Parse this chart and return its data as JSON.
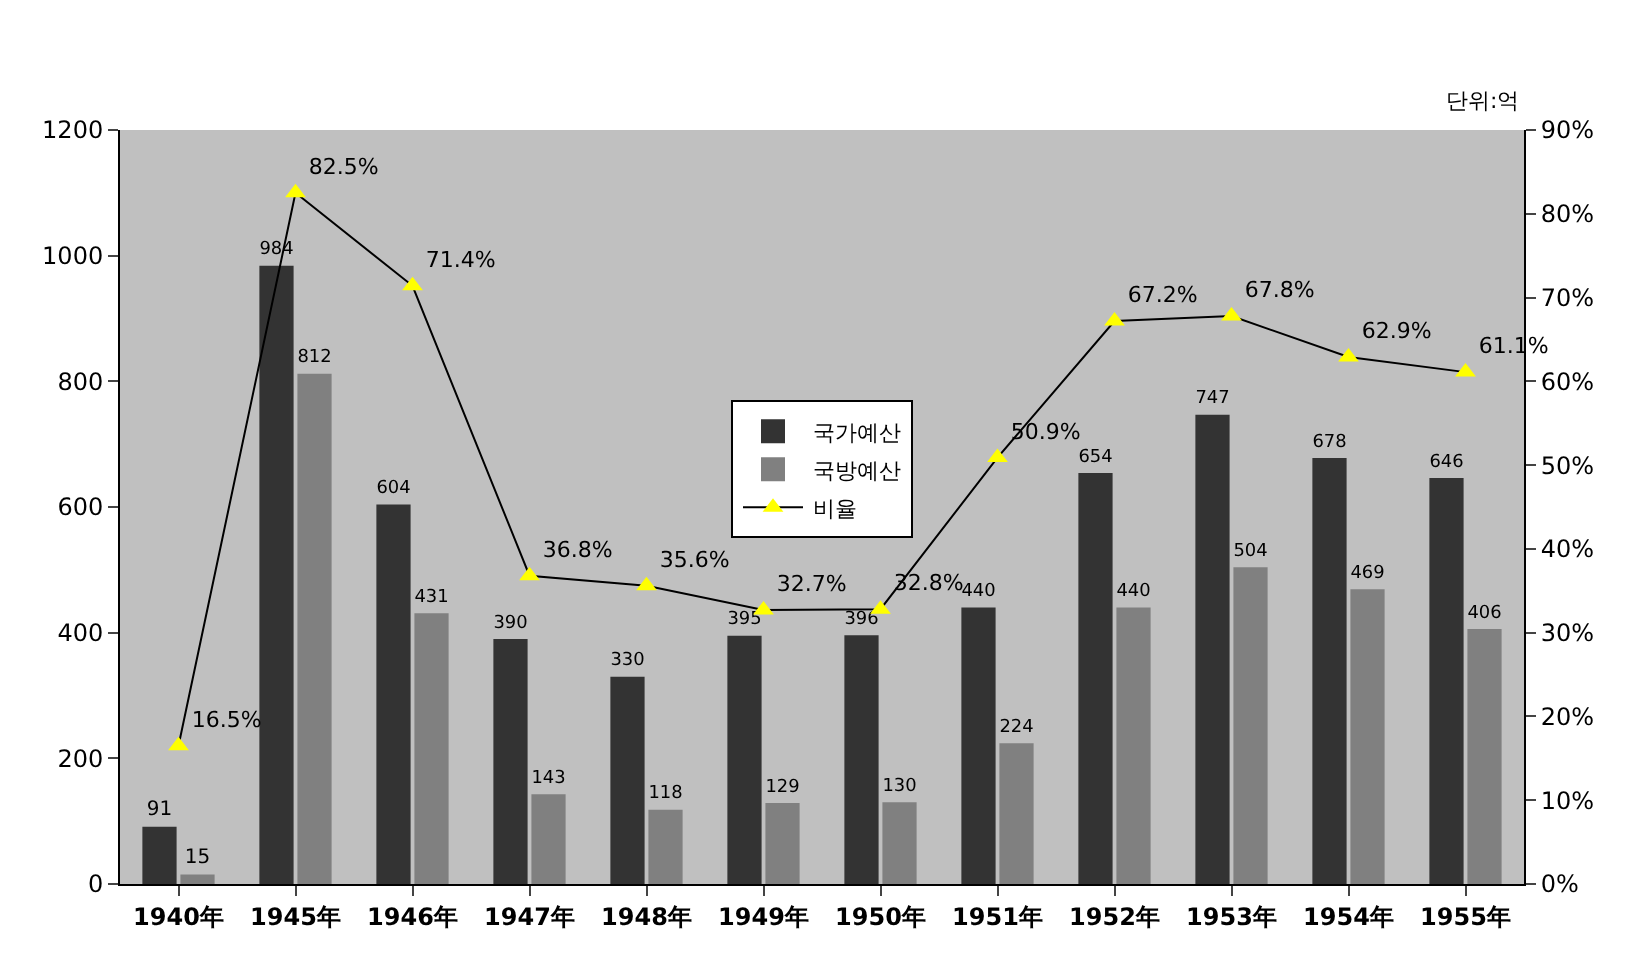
{
  "chart_data": {
    "type": "bar",
    "categories": [
      "1940年",
      "1945年",
      "1946年",
      "1947年",
      "1948年",
      "1949年",
      "1950年",
      "1951年",
      "1952年",
      "1953年",
      "1954年",
      "1955年"
    ],
    "series": [
      {
        "name": "국가예산",
        "color": "#333333",
        "values": [
          91,
          984,
          604,
          390,
          330,
          395,
          396,
          440,
          654,
          747,
          678,
          646
        ]
      },
      {
        "name": "국방예산",
        "color": "#808080",
        "values": [
          15,
          812,
          431,
          143,
          118,
          129,
          130,
          224,
          440,
          504,
          469,
          406
        ]
      },
      {
        "name": "비율",
        "type": "line",
        "axis": "y2",
        "color": "#000000",
        "colors": [
          "#ffff00",
          "#ffff00",
          "#ffff00",
          "#ffff00",
          "#ffff00",
          "#ffff00",
          "#ffff00",
          "#ffff00",
          "#ffff00",
          "#ffff00",
          "#ffff00",
          "#ffff00"
        ],
        "marker": "triangle",
        "values": [
          16.5,
          82.5,
          71.4,
          36.8,
          35.6,
          32.7,
          32.8,
          50.9,
          67.2,
          67.8,
          62.9,
          61.1
        ],
        "value_labels": [
          "16.5%",
          "82.5%",
          "71.4%",
          "36.8%",
          "35.6%",
          "32.7%",
          "32.8%",
          "50.9%",
          "67.2%",
          "67.8%",
          "62.9%",
          "61.1%"
        ]
      }
    ],
    "ylim": [
      0,
      1200
    ],
    "yticks": [
      0,
      200,
      400,
      600,
      800,
      1000,
      1200
    ],
    "y2lim": [
      0,
      90
    ],
    "y2ticks": [
      {
        "value": 0,
        "label": "0%"
      },
      {
        "value": 10,
        "label": "10%"
      },
      {
        "value": 20,
        "label": "20%"
      },
      {
        "value": 30,
        "label": "30%"
      },
      {
        "value": 40,
        "label": "40%"
      },
      {
        "value": 50,
        "label": "50%"
      },
      {
        "value": 60,
        "label": "60%"
      },
      {
        "value": 70,
        "label": "70%"
      },
      {
        "value": 80,
        "label": "80%"
      },
      {
        "value": 90,
        "label": "90%"
      }
    ],
    "data_labels": true,
    "grid": false,
    "legend": "center",
    "annotations": [
      "단위:억"
    ]
  }
}
